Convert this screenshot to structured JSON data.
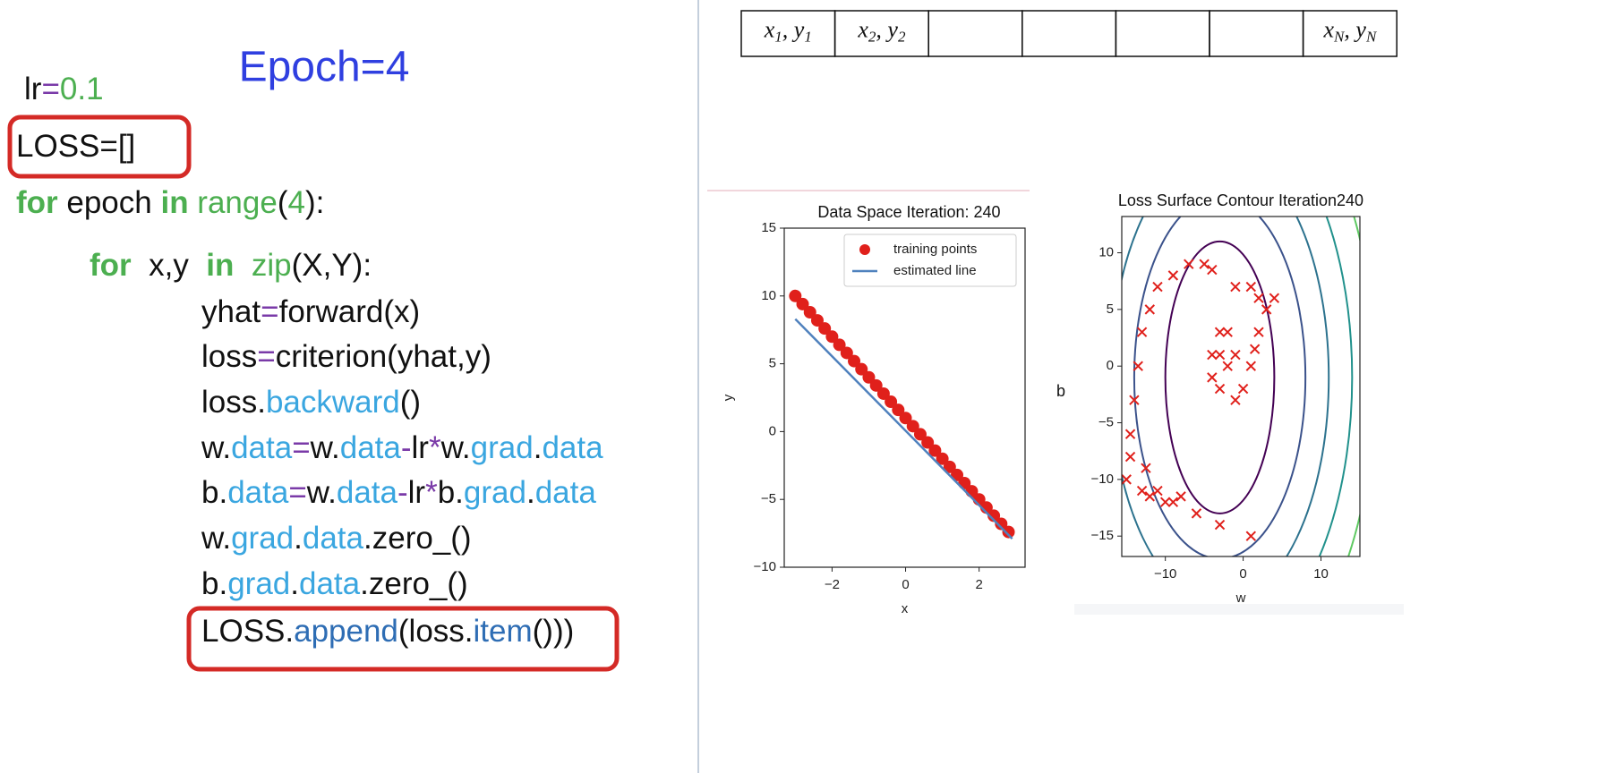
{
  "heading": {
    "text": "Epoch=4",
    "color": "#2f3fe0"
  },
  "code": [
    [
      {
        "text": "lr",
        "color": "#111"
      },
      {
        "text": "=",
        "color": "#7a3aa8"
      },
      {
        "text": "0.1",
        "color": "#4caf50"
      }
    ],
    [
      {
        "text": "LOSS=[]",
        "color": "#111"
      }
    ],
    [
      {
        "text": "for",
        "color": "#4caf50",
        "bold": true
      },
      {
        "text": " epoch ",
        "color": "#111"
      },
      {
        "text": "in",
        "color": "#4caf50",
        "bold": true
      },
      {
        "text": " range",
        "color": "#4caf50"
      },
      {
        "text": "(",
        "color": "#111"
      },
      {
        "text": "4",
        "color": "#4caf50"
      },
      {
        "text": "):",
        "color": "#111"
      }
    ],
    [
      {
        "text": "for",
        "color": "#4caf50",
        "bold": true
      },
      {
        "text": "  x,y  ",
        "color": "#111"
      },
      {
        "text": "in",
        "color": "#4caf50",
        "bold": true
      },
      {
        "text": "  zip",
        "color": "#4caf50"
      },
      {
        "text": "(X,Y):",
        "color": "#111"
      }
    ],
    [
      {
        "text": "yhat",
        "color": "#111"
      },
      {
        "text": "=",
        "color": "#7a3aa8"
      },
      {
        "text": "forward(x)",
        "color": "#111"
      }
    ],
    [
      {
        "text": "loss",
        "color": "#111"
      },
      {
        "text": "=",
        "color": "#7a3aa8"
      },
      {
        "text": "criterion(yhat,y)",
        "color": "#111"
      }
    ],
    [
      {
        "text": "loss.",
        "color": "#111"
      },
      {
        "text": "backward",
        "color": "#3aa6e0"
      },
      {
        "text": "()",
        "color": "#111"
      }
    ],
    [
      {
        "text": "w.",
        "color": "#111"
      },
      {
        "text": "data",
        "color": "#3aa6e0"
      },
      {
        "text": "=",
        "color": "#7a3aa8"
      },
      {
        "text": "w.",
        "color": "#111"
      },
      {
        "text": "data",
        "color": "#3aa6e0"
      },
      {
        "text": "-",
        "color": "#7a3aa8"
      },
      {
        "text": "lr",
        "color": "#111"
      },
      {
        "text": "*",
        "color": "#7a3aa8"
      },
      {
        "text": "w.",
        "color": "#111"
      },
      {
        "text": "grad",
        "color": "#3aa6e0"
      },
      {
        "text": ".",
        "color": "#111"
      },
      {
        "text": "data",
        "color": "#3aa6e0"
      }
    ],
    [
      {
        "text": "b.",
        "color": "#111"
      },
      {
        "text": "data",
        "color": "#3aa6e0"
      },
      {
        "text": "=",
        "color": "#7a3aa8"
      },
      {
        "text": "w.",
        "color": "#111"
      },
      {
        "text": "data",
        "color": "#3aa6e0"
      },
      {
        "text": "-",
        "color": "#7a3aa8"
      },
      {
        "text": "lr",
        "color": "#111"
      },
      {
        "text": "*",
        "color": "#7a3aa8"
      },
      {
        "text": "b.",
        "color": "#111"
      },
      {
        "text": "grad",
        "color": "#3aa6e0"
      },
      {
        "text": ".",
        "color": "#111"
      },
      {
        "text": "data",
        "color": "#3aa6e0"
      }
    ],
    [
      {
        "text": "w.",
        "color": "#111"
      },
      {
        "text": "grad",
        "color": "#3aa6e0"
      },
      {
        "text": ".",
        "color": "#111"
      },
      {
        "text": "data",
        "color": "#3aa6e0"
      },
      {
        "text": ".zero_()",
        "color": "#111"
      }
    ],
    [
      {
        "text": "b.",
        "color": "#111"
      },
      {
        "text": "grad",
        "color": "#3aa6e0"
      },
      {
        "text": ".",
        "color": "#111"
      },
      {
        "text": "data",
        "color": "#3aa6e0"
      },
      {
        "text": ".zero_()",
        "color": "#111"
      }
    ],
    [
      {
        "text": "LOSS.",
        "color": "#111"
      },
      {
        "text": "append",
        "color": "#2e6db4"
      },
      {
        "text": "(loss.",
        "color": "#111"
      },
      {
        "text": "item",
        "color": "#2e6db4"
      },
      {
        "text": "()))",
        "color": "#111"
      }
    ]
  ],
  "table": {
    "separator": ", ",
    "cells": [
      [
        [
          "x",
          "1"
        ],
        [
          "y",
          "1"
        ]
      ],
      [
        [
          "x",
          "2"
        ],
        [
          "y",
          "2"
        ]
      ],
      null,
      null,
      null,
      null,
      [
        [
          "x",
          "N"
        ],
        [
          "y",
          "N"
        ]
      ]
    ]
  },
  "chart_data": [
    {
      "type": "scatter",
      "title": "Data Space Iteration: 240",
      "x_label": "x",
      "y_label": "y",
      "xlim": [
        -3.3,
        3.25
      ],
      "ylim": [
        -10,
        15
      ],
      "xticks": [
        {
          "value": -2,
          "label": "−2"
        },
        0,
        2
      ],
      "yticks": [
        {
          "value": -10,
          "label": "−10"
        },
        {
          "value": -5,
          "label": "−5"
        },
        0,
        5,
        10,
        15
      ],
      "series": [
        {
          "name": "training points",
          "color": "#e0201b",
          "x": [
            -3,
            -2.8,
            -2.6,
            -2.4,
            -2.2,
            -2,
            -1.8,
            -1.6,
            -1.4,
            -1.2,
            -1,
            -0.8,
            -0.6,
            -0.4,
            -0.2,
            0,
            0.2,
            0.4,
            0.6,
            0.8,
            1,
            1.2,
            1.4,
            1.6,
            1.8,
            2,
            2.2,
            2.4,
            2.6,
            2.8
          ],
          "values": [
            10,
            9.4,
            8.8,
            8.2,
            7.6,
            7,
            6.4,
            5.8,
            5.2,
            4.6,
            4,
            3.4,
            2.8,
            2.2,
            1.6,
            1,
            0.4,
            -0.2,
            -0.8,
            -1.4,
            -2,
            -2.6,
            -3.2,
            -3.8,
            -4.4,
            -5,
            -5.6,
            -6.2,
            -6.8,
            -7.4
          ]
        },
        {
          "name": "estimated line",
          "color": "#4f81bd",
          "x": [
            -3,
            2.9
          ],
          "values": [
            8.3,
            -7.9
          ]
        }
      ]
    },
    {
      "type": "contour",
      "title": "Loss Surface Contour Iteration240",
      "x_label": "w",
      "y_label": "b",
      "xlim": [
        -15.6,
        15
      ],
      "ylim": [
        -16.8,
        13.2
      ],
      "xticks": [
        {
          "value": -10,
          "label": "−10"
        },
        0,
        10
      ],
      "yticks": [
        {
          "value": -15,
          "label": "−15"
        },
        {
          "value": -10,
          "label": "−10"
        },
        {
          "value": -5,
          "label": "−5"
        },
        0,
        5,
        10
      ],
      "contours": {
        "w_center": -3,
        "b_center": -1,
        "w_radius": [
          7,
          11,
          14,
          17,
          20,
          23
        ],
        "b_radius": [
          12,
          16,
          20,
          24,
          28,
          32
        ],
        "colors": [
          "#440154",
          "#3b528b",
          "#2c728e",
          "#21918c",
          "#5ec962",
          "#c8e020"
        ]
      },
      "series": [
        {
          "color": "#e0201b",
          "x": [
            -15,
            -14.5,
            -14.5,
            -14,
            -13.5,
            -13,
            -12,
            -11,
            -9,
            -7,
            -5,
            -4,
            -1,
            1,
            2,
            3,
            4,
            2,
            1.5,
            1,
            0,
            -1,
            -3,
            -4,
            -4,
            -3,
            -2,
            -1,
            -2,
            -3,
            -13,
            -12,
            -10,
            -9,
            -8,
            -6,
            -3,
            1,
            -12.5,
            -11
          ],
          "values": [
            -10,
            -6,
            -8,
            -3,
            0,
            3,
            5,
            7,
            8,
            9,
            9,
            8.5,
            7,
            7,
            6,
            5,
            6,
            3,
            1.5,
            0,
            -2,
            -3,
            -2,
            -1,
            1,
            3,
            3,
            1,
            0,
            1,
            -11,
            -11.5,
            -12,
            -12,
            -11.5,
            -13,
            -14,
            -15,
            -9,
            -11
          ]
        }
      ]
    }
  ]
}
